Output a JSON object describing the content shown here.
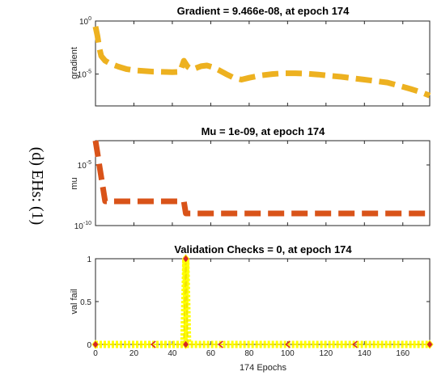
{
  "side_caption": "(d) EHs: (1)",
  "xlabel": "174 Epochs",
  "xticks": [
    0,
    20,
    40,
    60,
    80,
    100,
    120,
    140,
    160
  ],
  "chart_data": [
    {
      "type": "line",
      "title": "Gradient = 9.466e-08, at epoch 174",
      "ylabel": "gradient",
      "y_scale": "log",
      "xlim": [
        0,
        174
      ],
      "ylim": [
        1e-08,
        1
      ],
      "yticks": [
        {
          "value": 1,
          "base": "10",
          "exp": "0"
        },
        {
          "value": 1e-05,
          "base": "10",
          "exp": "-5"
        }
      ],
      "series": [
        {
          "color": "#EDB120",
          "points": [
            [
              0,
              0.3
            ],
            [
              1,
              0.04
            ],
            [
              2,
              0.003
            ],
            [
              3,
              0.0005
            ],
            [
              5,
              0.00018
            ],
            [
              8,
              9e-05
            ],
            [
              12,
              5e-05
            ],
            [
              16,
              3e-05
            ],
            [
              20,
              2.3e-05
            ],
            [
              25,
              2e-05
            ],
            [
              30,
              1.7e-05
            ],
            [
              35,
              1.6e-05
            ],
            [
              40,
              1.5e-05
            ],
            [
              44,
              1.6e-05
            ],
            [
              46,
              0.00018
            ],
            [
              48,
              5e-05
            ],
            [
              50,
              2.8e-05
            ],
            [
              52,
              3.5e-05
            ],
            [
              55,
              5.5e-05
            ],
            [
              58,
              6.5e-05
            ],
            [
              61,
              4.5e-05
            ],
            [
              64,
              2.5e-05
            ],
            [
              68,
              1e-05
            ],
            [
              72,
              4.5e-06
            ],
            [
              76,
              3e-06
            ],
            [
              80,
              4.5e-06
            ],
            [
              86,
              7.5e-06
            ],
            [
              92,
              1e-05
            ],
            [
              98,
              1.2e-05
            ],
            [
              104,
              1.2e-05
            ],
            [
              110,
              1.1e-05
            ],
            [
              116,
              9e-06
            ],
            [
              122,
              7e-06
            ],
            [
              128,
              5.5e-06
            ],
            [
              134,
              4e-06
            ],
            [
              140,
              3e-06
            ],
            [
              146,
              2.2e-06
            ],
            [
              152,
              1.6e-06
            ],
            [
              158,
              8e-07
            ],
            [
              164,
              4e-07
            ],
            [
              170,
              1.8e-07
            ],
            [
              174,
              9.466e-08
            ]
          ]
        }
      ]
    },
    {
      "type": "line",
      "title": "Mu = 1e-09, at epoch 174",
      "ylabel": "mu",
      "y_scale": "log",
      "xlim": [
        0,
        174
      ],
      "ylim": [
        1e-10,
        0.001
      ],
      "yticks": [
        {
          "value": 1e-05,
          "base": "10",
          "exp": "-5"
        },
        {
          "value": 1e-10,
          "base": "10",
          "exp": "-10"
        }
      ],
      "series": [
        {
          "color": "#D95319",
          "points": [
            [
              0,
              0.001
            ],
            [
              1,
              0.0001
            ],
            [
              2,
              1e-05
            ],
            [
              3,
              1e-06
            ],
            [
              4,
              1e-07
            ],
            [
              5,
              1e-08
            ],
            [
              46,
              1e-08
            ],
            [
              47,
              1e-09
            ],
            [
              174,
              1e-09
            ]
          ]
        }
      ]
    },
    {
      "type": "line",
      "title": "Validation Checks = 0, at epoch 174",
      "ylabel": "val fail",
      "y_scale": "linear",
      "xlim": [
        0,
        174
      ],
      "ylim": [
        0,
        1
      ],
      "yticks": [
        {
          "label": "0",
          "value": 0
        },
        {
          "label": "0.5",
          "value": 0.5
        },
        {
          "label": "1",
          "value": 1
        }
      ],
      "series": [
        {
          "color": "#FFFF00",
          "points": [
            [
              0,
              0
            ],
            [
              45,
              0
            ],
            [
              46,
              0
            ],
            [
              47,
              1
            ],
            [
              48,
              0
            ],
            [
              174,
              0
            ]
          ]
        }
      ],
      "markers": [
        {
          "x": 0,
          "y": 0,
          "shape": "diamond",
          "color": "#D62728"
        },
        {
          "x": 47,
          "y": 1,
          "shape": "diamond",
          "color": "#D62728"
        },
        {
          "x": 47,
          "y": 0,
          "shape": "diamond",
          "color": "#D62728"
        },
        {
          "x": 174,
          "y": 0,
          "shape": "diamond",
          "color": "#D62728"
        },
        {
          "x": 30,
          "y": 0,
          "shape": "chevron",
          "color": "#D62728"
        },
        {
          "x": 65,
          "y": 0,
          "shape": "chevron",
          "color": "#D62728"
        },
        {
          "x": 100,
          "y": 0,
          "shape": "chevron",
          "color": "#D62728"
        },
        {
          "x": 135,
          "y": 0,
          "shape": "chevron",
          "color": "#D62728"
        }
      ]
    }
  ]
}
